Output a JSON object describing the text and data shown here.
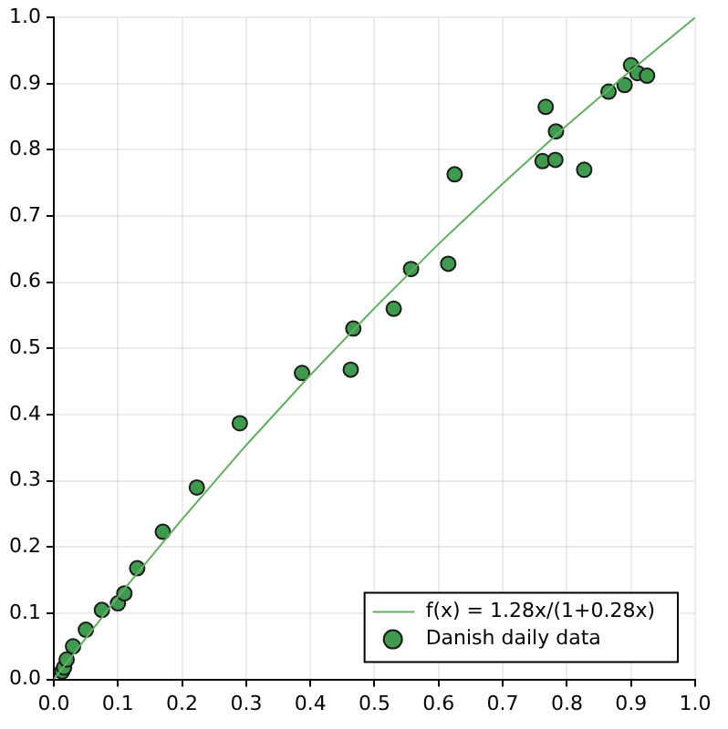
{
  "chart_data": {
    "type": "scatter",
    "xlim": [
      0,
      1
    ],
    "ylim": [
      0,
      1
    ],
    "xticks": [
      {
        "value": 0,
        "label": "0.0"
      },
      {
        "value": 0.1,
        "label": "0.1"
      },
      {
        "value": 0.2,
        "label": "0.2"
      },
      {
        "value": 0.3,
        "label": "0.3"
      },
      {
        "value": 0.4,
        "label": "0.4"
      },
      {
        "value": 0.5,
        "label": "0.5"
      },
      {
        "value": 0.6,
        "label": "0.6"
      },
      {
        "value": 0.7,
        "label": "0.7"
      },
      {
        "value": 0.8,
        "label": "0.8"
      },
      {
        "value": 0.9,
        "label": "0.9"
      },
      {
        "value": 1,
        "label": "1.0"
      }
    ],
    "yticks": [
      {
        "value": 0,
        "label": "0.0"
      },
      {
        "value": 0.1,
        "label": "0.1"
      },
      {
        "value": 0.2,
        "label": "0.2"
      },
      {
        "value": 0.3,
        "label": "0.3"
      },
      {
        "value": 0.4,
        "label": "0.4"
      },
      {
        "value": 0.5,
        "label": "0.5"
      },
      {
        "value": 0.6,
        "label": "0.6"
      },
      {
        "value": 0.7,
        "label": "0.7"
      },
      {
        "value": 0.8,
        "label": "0.8"
      },
      {
        "value": 0.9,
        "label": "0.9"
      },
      {
        "value": 1,
        "label": "1.0"
      }
    ],
    "grid": true,
    "legend": "bottom right",
    "series": [
      {
        "name": "f(x) = 1.28x/(1+0.28x)",
        "type": "line",
        "color": "#62ae62",
        "marker": "none",
        "x": [
          0,
          0.1,
          0.2,
          0.3,
          0.4,
          0.5,
          0.6,
          0.7,
          0.8,
          0.9,
          1
        ],
        "values": [
          0,
          0.125,
          0.242,
          0.354,
          0.46,
          0.561,
          0.658,
          0.749,
          0.837,
          0.92,
          1
        ]
      },
      {
        "name": "Danish daily data",
        "color": "#3f9a4f",
        "marker": "circle",
        "x": [
          0.013,
          0.016,
          0.02,
          0.03,
          0.05,
          0.075,
          0.1,
          0.11,
          0.13,
          0.17,
          0.223,
          0.29,
          0.387,
          0.463,
          0.467,
          0.53,
          0.557,
          0.615,
          0.625,
          0.762,
          0.767,
          0.782,
          0.783,
          0.827,
          0.865,
          0.89,
          0.9,
          0.91,
          0.925
        ],
        "values": [
          0.012,
          0.018,
          0.03,
          0.05,
          0.075,
          0.105,
          0.115,
          0.13,
          0.168,
          0.223,
          0.29,
          0.387,
          0.463,
          0.468,
          0.53,
          0.56,
          0.62,
          0.628,
          0.763,
          0.783,
          0.865,
          0.785,
          0.828,
          0.77,
          0.888,
          0.898,
          0.928,
          0.916,
          0.912
        ]
      }
    ]
  }
}
